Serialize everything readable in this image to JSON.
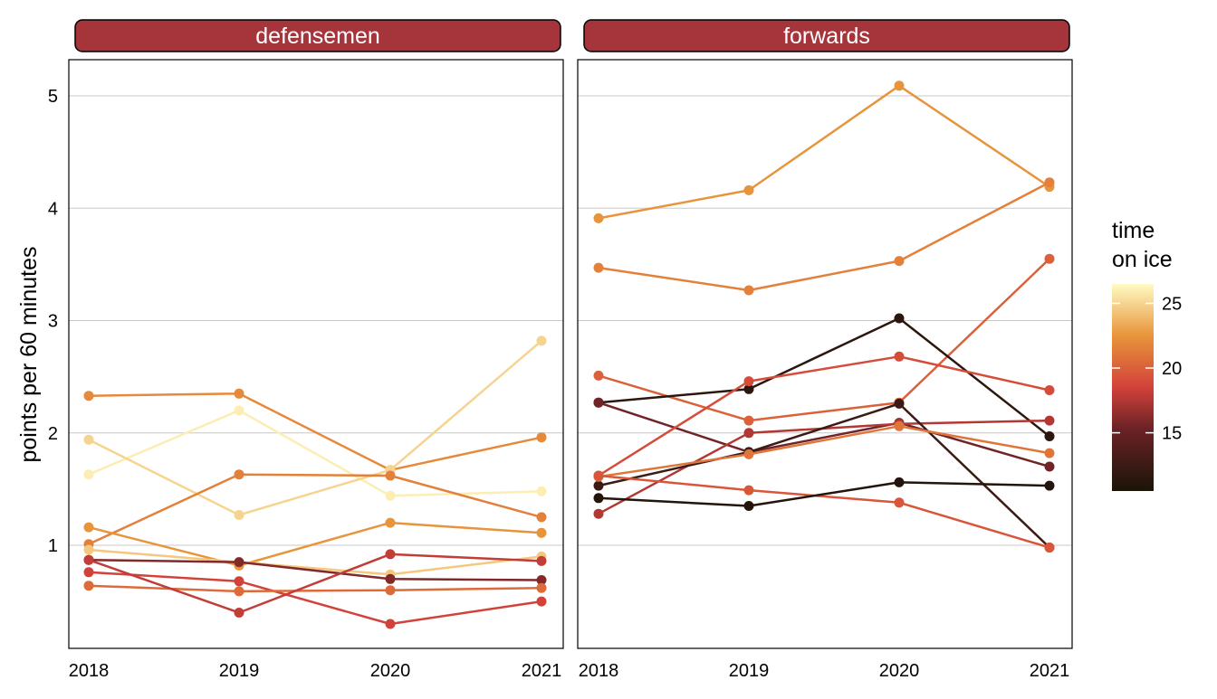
{
  "chart_data": {
    "type": "line",
    "ylabel": "points per 60 minutes",
    "x_ticks": [
      "2018",
      "2019",
      "2020",
      "2021"
    ],
    "y_ticks": [
      "1",
      "2",
      "3",
      "4",
      "5"
    ],
    "ylim": [
      0,
      5.3
    ],
    "grid": "horizontal major lines",
    "legend": {
      "title_line1": "time",
      "title_line2": "on ice",
      "ticks": [
        "15",
        "20",
        "25"
      ],
      "range": [
        10.5,
        26.5
      ],
      "placement": "right"
    },
    "panels": [
      {
        "strip": "defensemen",
        "series": [
          {
            "values": [
              2.33,
              2.35,
              1.67,
              1.96
            ],
            "toi": 22.0
          },
          {
            "values": [
              1.63,
              2.2,
              1.44,
              1.48
            ],
            "toi": 26.0
          },
          {
            "values": [
              1.94,
              1.27,
              1.67,
              2.82
            ],
            "toi": 25.0
          },
          {
            "values": [
              1.01,
              1.63,
              1.62,
              1.25
            ],
            "toi": 21.5
          },
          {
            "values": [
              1.16,
              0.82,
              1.2,
              1.11
            ],
            "toi": 22.5
          },
          {
            "values": [
              0.96,
              0.85,
              0.74,
              0.9
            ],
            "toi": 24.5
          },
          {
            "values": [
              0.87,
              0.85,
              0.7,
              0.69
            ],
            "toi": 16.0
          },
          {
            "values": [
              0.76,
              0.68,
              0.3,
              0.5
            ],
            "toi": 18.5
          },
          {
            "values": [
              0.64,
              0.59,
              0.6,
              0.62
            ],
            "toi": 20.5
          },
          {
            "values": [
              0.87,
              0.4,
              0.92,
              0.86
            ],
            "toi": 18.0
          }
        ]
      },
      {
        "strip": "forwards",
        "series": [
          {
            "values": [
              3.91,
              4.16,
              5.09,
              4.19
            ],
            "toi": 22.5
          },
          {
            "values": [
              3.47,
              3.27,
              3.53,
              4.23
            ],
            "toi": 21.5
          },
          {
            "values": [
              2.51,
              2.11,
              2.27,
              3.55
            ],
            "toi": 20.0
          },
          {
            "values": [
              2.27,
              2.39,
              3.02,
              1.97
            ],
            "toi": 11.5
          },
          {
            "values": [
              2.27,
              1.83,
              2.09,
              1.7
            ],
            "toi": 15.5
          },
          {
            "values": [
              1.28,
              2.0,
              2.08,
              2.11
            ],
            "toi": 17.5
          },
          {
            "values": [
              1.62,
              2.46,
              2.68,
              2.38
            ],
            "toi": 19.0
          },
          {
            "values": [
              1.53,
              1.83,
              2.26,
              0.98
            ],
            "toi": 12.5
          },
          {
            "values": [
              1.61,
              1.81,
              2.06,
              1.82
            ],
            "toi": 21.0
          },
          {
            "values": [
              1.62,
              1.49,
              1.38,
              0.98
            ],
            "toi": 19.5
          },
          {
            "values": [
              1.42,
              1.35,
              1.56,
              1.53
            ],
            "toi": 11.0
          }
        ]
      }
    ]
  },
  "colors": {
    "strip_fill": "#a6343b",
    "strip_text": "#ffffff",
    "panel_border": "#000000",
    "grid": "#c8c8c8",
    "scale_low": "#1b1408",
    "scale_mid1": "#6b2226",
    "scale_mid2": "#d2423a",
    "scale_mid3": "#e8943a",
    "scale_high": "#fffbc4"
  }
}
